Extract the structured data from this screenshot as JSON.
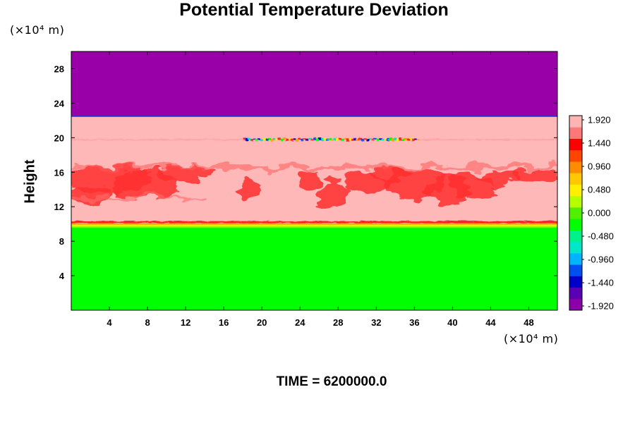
{
  "chart_data": {
    "type": "heatmap",
    "title": "Potential Temperature Deviation",
    "ylabel": "Height",
    "xlabel": "",
    "x_unit": "(×10⁴ m)",
    "y_unit": "(×10⁴ m)",
    "x_ticks": [
      4,
      8,
      12,
      16,
      20,
      24,
      28,
      32,
      36,
      40,
      44,
      48
    ],
    "y_ticks": [
      4,
      8,
      12,
      16,
      20,
      24,
      28
    ],
    "xlim": [
      0,
      51
    ],
    "ylim": [
      0,
      30
    ],
    "colorbar": {
      "labels": [
        "1.920",
        "1.440",
        "0.960",
        "0.480",
        "0.000",
        "-0.480",
        "-0.960",
        "-1.440",
        "-1.920"
      ],
      "range": [
        -1.92,
        1.92
      ],
      "colors": [
        "#8c00a8",
        "#5a00b4",
        "#0000c8",
        "#0050f0",
        "#00b4ff",
        "#00e6c8",
        "#00f08c",
        "#00ff00",
        "#50f000",
        "#b4ff00",
        "#fff000",
        "#ffc800",
        "#ff8c00",
        "#ff4600",
        "#ff0000",
        "#ff7878",
        "#ffb4b4"
      ]
    },
    "regions": [
      {
        "name": "upper",
        "y_range": [
          22.5,
          30
        ],
        "value": -1.92,
        "color": "#9900a8"
      },
      {
        "name": "middle",
        "y_range": [
          10,
          22.5
        ],
        "value": 1.92,
        "color": "#ffb8b8"
      },
      {
        "name": "lower",
        "y_range": [
          0,
          10
        ],
        "value": 0.0,
        "color": "#00ff00"
      }
    ],
    "features": [
      {
        "type": "red-band",
        "x_range": [
          0,
          51
        ],
        "y_range": [
          12.3,
          17
        ],
        "color": "#ff3030"
      },
      {
        "type": "mixed-line",
        "x_range": [
          18,
          36.5
        ],
        "y": 19.8
      }
    ]
  },
  "footer": {
    "time_label": "TIME = 6200000.0"
  }
}
